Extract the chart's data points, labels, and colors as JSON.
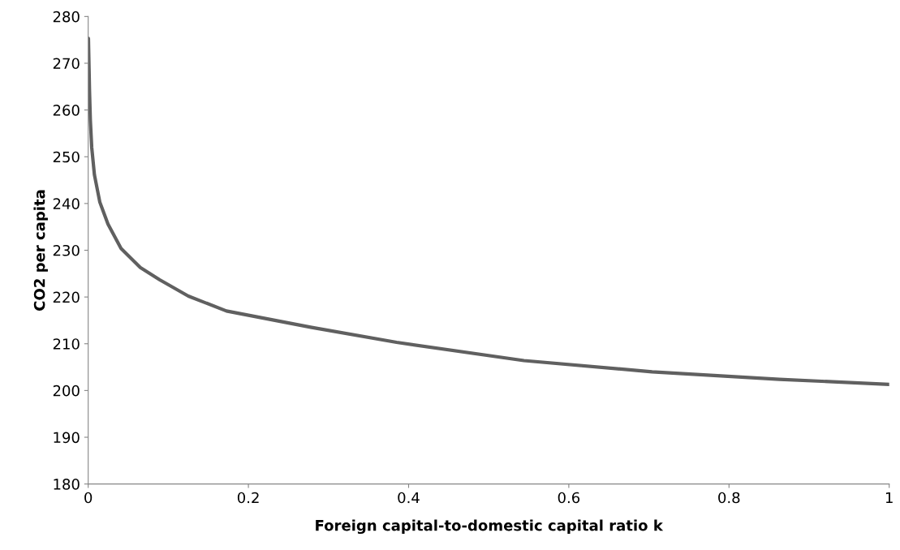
{
  "chart_data": {
    "type": "line",
    "xlabel": "Foreign capital-to-domestic capital ratio k",
    "ylabel": "CO2 per capita",
    "series": [
      {
        "color": "#606060",
        "x": [
          0.0003,
          0.0017,
          0.0027,
          0.0044,
          0.0078,
          0.0145,
          0.0247,
          0.041,
          0.065,
          0.089,
          0.125,
          0.1726,
          0.279,
          0.385,
          0.544,
          0.704,
          0.863,
          1.0
        ],
        "values": [
          275.3,
          263.7,
          257.8,
          252.0,
          246.1,
          240.3,
          235.6,
          230.4,
          226.3,
          223.7,
          220.2,
          217.0,
          213.5,
          210.3,
          206.4,
          204.0,
          202.4,
          201.3
        ]
      }
    ],
    "xlim": [
      0,
      1
    ],
    "xticks": [
      0,
      0.2,
      0.4,
      0.6,
      0.8,
      1
    ],
    "ylim": [
      180,
      280
    ],
    "yticks": [
      180,
      190,
      200,
      210,
      220,
      230,
      240,
      250,
      260,
      270,
      280
    ],
    "grid": false,
    "legend": false,
    "marker": "none",
    "line_style": "solid"
  }
}
